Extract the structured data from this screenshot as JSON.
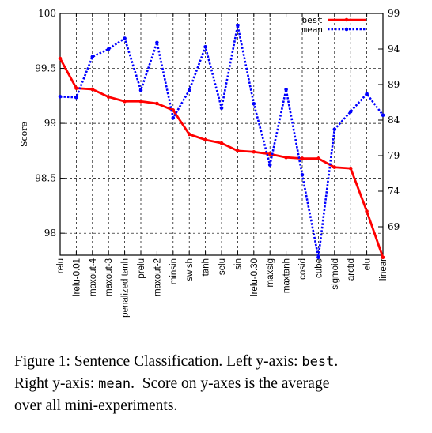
{
  "chart_data": {
    "type": "line",
    "categories": [
      "relu",
      "lrelu-0.01",
      "maxout-4",
      "maxout-3",
      "penalized tanh",
      "prelu",
      "maxout-2",
      "minsin",
      "swish",
      "tanh",
      "selu",
      "sin",
      "lrelu-0.30",
      "maxsig",
      "maxtanh",
      "cosid",
      "cube",
      "sigmoid",
      "arctid",
      "elu",
      "linear"
    ],
    "ylabel": "Score",
    "ylim": [
      97.8,
      100
    ],
    "y2lim": [
      65,
      99
    ],
    "yticks": [
      98,
      98.5,
      99,
      99.5,
      100
    ],
    "yticks_labels": [
      "98",
      "98.5",
      "99",
      "99.5",
      "100"
    ],
    "y2ticks": [
      69,
      74,
      79,
      84,
      89,
      94,
      99
    ],
    "y2ticks_labels": [
      "69",
      "74",
      "79",
      "84",
      "89",
      "94",
      "99"
    ],
    "grid": true,
    "legend_position": "top-right",
    "series": [
      {
        "name": "best",
        "axis": "left",
        "color": "#ff0000",
        "style": "solid",
        "values": [
          99.59,
          99.32,
          99.31,
          99.24,
          99.2,
          99.2,
          99.18,
          99.12,
          98.9,
          98.85,
          98.82,
          98.75,
          98.74,
          98.72,
          98.69,
          98.68,
          98.68,
          98.6,
          98.59,
          98.2,
          97.78
        ]
      },
      {
        "name": "mean",
        "axis": "right",
        "color": "#0000ff",
        "style": "dotted",
        "values": [
          87.3,
          87.2,
          92.9,
          94.0,
          95.5,
          88.2,
          94.9,
          84.3,
          88.2,
          94.3,
          85.7,
          97.3,
          86.3,
          77.7,
          88.3,
          76.3,
          64.7,
          82.7,
          85.2,
          87.7,
          84.7
        ]
      }
    ]
  },
  "caption": {
    "line1_text": "Figure 1: Sentence Classification. Left y-axis: ",
    "line1_code": "best",
    "line1_end": ".",
    "line2_text": "Right y-axis: ",
    "line2_code": "mean",
    "line2_end": ".  Score on y-axes is the average",
    "line3": "over all mini-experiments."
  }
}
